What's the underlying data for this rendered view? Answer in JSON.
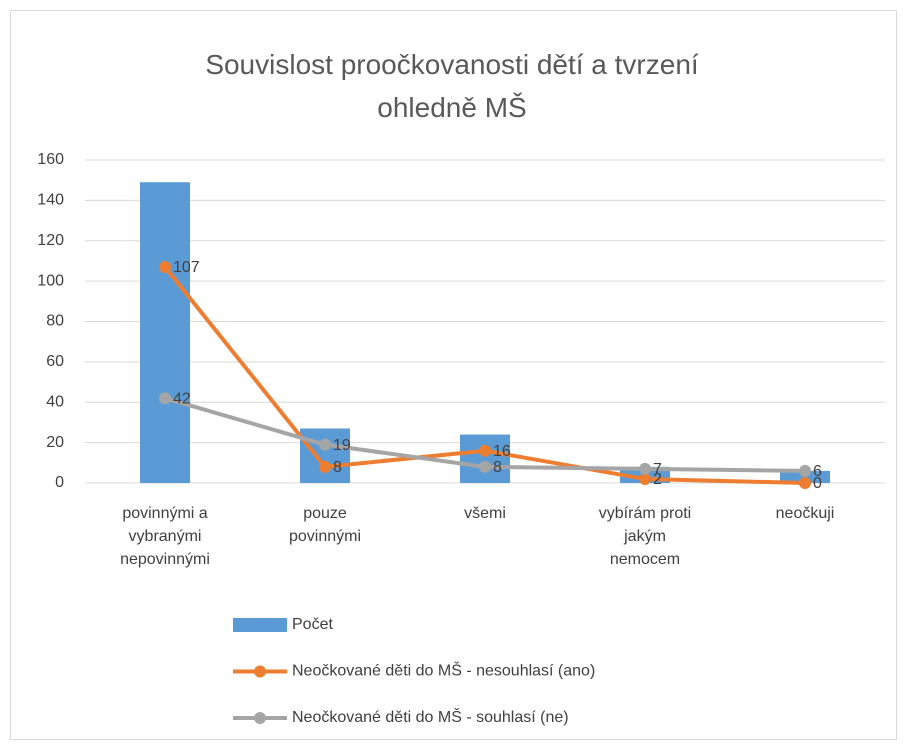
{
  "chart_data": {
    "type": "bar-line",
    "title": "Souvislost proočkovanosti dětí a tvrzení\nohledně MŠ",
    "categories": [
      "povinnými a\nvybranými\nnepovinnými",
      "pouze\npovinnými",
      "všemi",
      "vybírám proti\njakým\nnemocem",
      "neočkuji"
    ],
    "series": [
      {
        "name": "Počet",
        "type": "bar",
        "color": "#5B9BD5",
        "values": [
          149,
          27,
          24,
          8,
          6
        ]
      },
      {
        "name": "Neočkované děti do MŠ - nesouhlasí (ano)",
        "type": "line",
        "color": "#ED7D31",
        "values": [
          107,
          8,
          16,
          2,
          0
        ]
      },
      {
        "name": "Neočkované děti do MŠ - souhlasí (ne)",
        "type": "line",
        "color": "#A5A5A5",
        "values": [
          42,
          19,
          8,
          7,
          6
        ]
      }
    ],
    "ylim": [
      0,
      160
    ],
    "yticks": [
      0,
      20,
      40,
      60,
      80,
      100,
      120,
      140,
      160
    ],
    "grid": true,
    "legend": "bottom"
  }
}
